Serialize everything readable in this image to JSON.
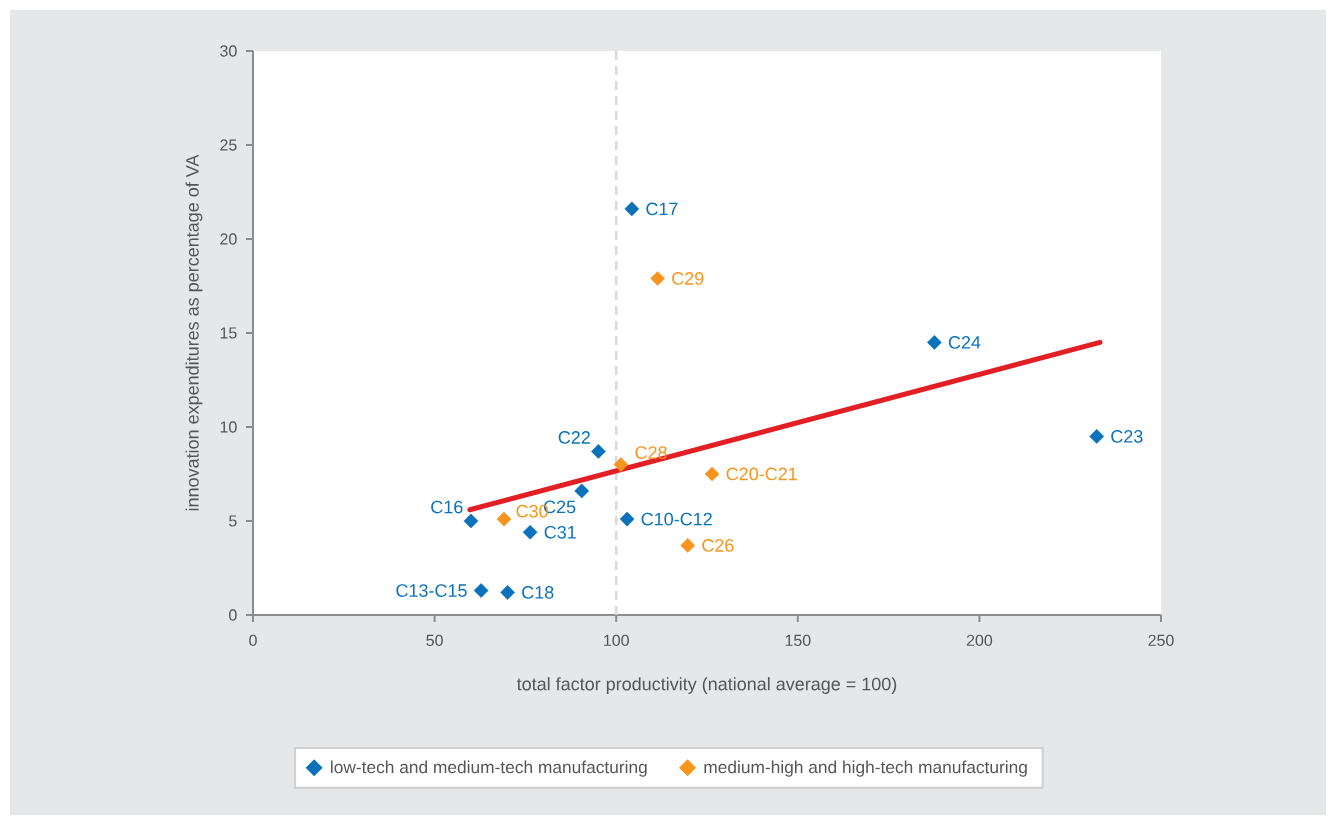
{
  "chart_data": {
    "type": "scatter",
    "xlabel": "total factor productivity (national average = 100)",
    "ylabel": "innovation expenditures as percentage of VA",
    "xlim": [
      0,
      250
    ],
    "xticks": [
      0,
      50,
      100,
      150,
      200,
      250
    ],
    "ylim": [
      0,
      30
    ],
    "yticks": [
      0,
      5,
      10,
      15,
      20,
      25,
      30
    ],
    "grid": false,
    "legend": "bottom",
    "marker": "diamond",
    "series": [
      {
        "name": "low-tech and medium-tech manufacturing",
        "color": "#0a72ba",
        "x": [
          104.3,
          187.6,
          232.3,
          95.1,
          90.5,
          60.0,
          103.0,
          76.3,
          62.8,
          70.1
        ],
        "values": [
          21.6,
          14.5,
          9.5,
          8.7,
          6.6,
          5.0,
          5.1,
          4.4,
          1.3,
          1.2
        ]
      },
      {
        "name": "medium-high and high-tech manufacturing",
        "color": "#f7941d",
        "x": [
          111.4,
          101.3,
          126.4,
          69.1,
          119.7
        ],
        "values": [
          17.9,
          8.0,
          7.5,
          5.1,
          3.7
        ]
      },
      {
        "type": "line",
        "color": "#e31f26",
        "marker": "none",
        "line_style": "solid",
        "x": [
          59.7,
          233.2
        ],
        "values": [
          5.6,
          14.5
        ]
      }
    ],
    "ref_lines": [
      {
        "axis": "x",
        "value": 100,
        "color": "#d9d9d9",
        "line_style": "dashed"
      }
    ],
    "annotations": [
      {
        "text": "C17",
        "x": 104.3,
        "y": 21.6
      },
      {
        "text": "C29",
        "x": 111.4,
        "y": 17.9
      },
      {
        "text": "C24",
        "x": 187.6,
        "y": 14.5
      },
      {
        "text": "C23",
        "x": 232.3,
        "y": 9.5
      },
      {
        "text": "C22",
        "x": 95.1,
        "y": 8.7
      },
      {
        "text": "C28",
        "x": 101.3,
        "y": 8.0
      },
      {
        "text": "C20-C21",
        "x": 126.4,
        "y": 7.5
      },
      {
        "text": "C25",
        "x": 90.5,
        "y": 6.6
      },
      {
        "text": "C16",
        "x": 60.0,
        "y": 5.0
      },
      {
        "text": "C30",
        "x": 69.1,
        "y": 5.1
      },
      {
        "text": "C10-C12",
        "x": 103.0,
        "y": 5.1
      },
      {
        "text": "C31",
        "x": 76.3,
        "y": 4.4
      },
      {
        "text": "C26",
        "x": 119.7,
        "y": 3.7
      },
      {
        "text": "C13-C15",
        "x": 62.8,
        "y": 1.3
      },
      {
        "text": "C18",
        "x": 70.1,
        "y": 1.2
      }
    ]
  }
}
